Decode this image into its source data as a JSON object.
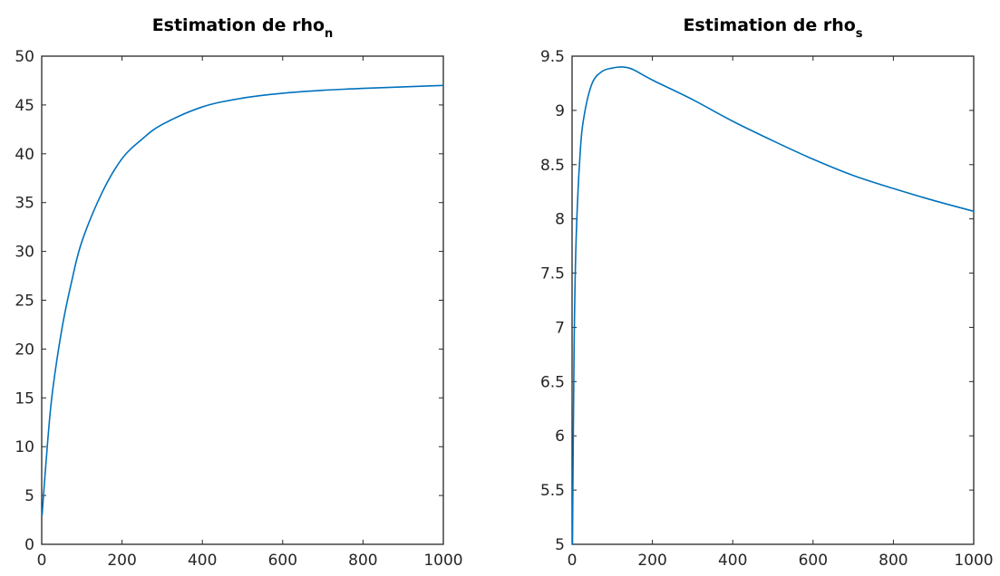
{
  "chart_data": [
    {
      "type": "line",
      "title": "Estimation de rho",
      "title_subscript": "n",
      "xlabel": "",
      "ylabel": "",
      "xlim": [
        0,
        1000
      ],
      "ylim": [
        0,
        50
      ],
      "xticks": [
        "0",
        "200",
        "400",
        "600",
        "800",
        "1000"
      ],
      "yticks": [
        "0",
        "5",
        "10",
        "15",
        "20",
        "25",
        "30",
        "35",
        "40",
        "45",
        "50"
      ],
      "grid": false,
      "series": [
        {
          "color": "#0072bd",
          "x": [
            1,
            10,
            25,
            50,
            75,
            100,
            150,
            200,
            250,
            300,
            400,
            500,
            600,
            700,
            800,
            900,
            1000
          ],
          "y": [
            3,
            8,
            15,
            22,
            27,
            31,
            36,
            39.5,
            41.5,
            43,
            44.8,
            45.7,
            46.2,
            46.5,
            46.7,
            46.85,
            47
          ]
        }
      ]
    },
    {
      "type": "line",
      "title": "Estimation de rho",
      "title_subscript": "s",
      "xlabel": "",
      "ylabel": "",
      "xlim": [
        0,
        1000
      ],
      "ylim": [
        5,
        9.5
      ],
      "xticks": [
        "0",
        "200",
        "400",
        "600",
        "800",
        "1000"
      ],
      "yticks": [
        "5",
        "5.5",
        "6",
        "6.5",
        "7",
        "7.5",
        "8",
        "8.5",
        "9",
        "9.5"
      ],
      "grid": false,
      "series": [
        {
          "color": "#0072bd",
          "x": [
            1,
            5,
            10,
            20,
            30,
            50,
            75,
            100,
            125,
            150,
            200,
            300,
            400,
            500,
            600,
            700,
            800,
            900,
            1000
          ],
          "y": [
            5,
            6.8,
            7.8,
            8.6,
            8.95,
            9.25,
            9.36,
            9.39,
            9.4,
            9.38,
            9.28,
            9.1,
            8.9,
            8.72,
            8.55,
            8.4,
            8.28,
            8.17,
            8.07
          ]
        }
      ]
    }
  ]
}
